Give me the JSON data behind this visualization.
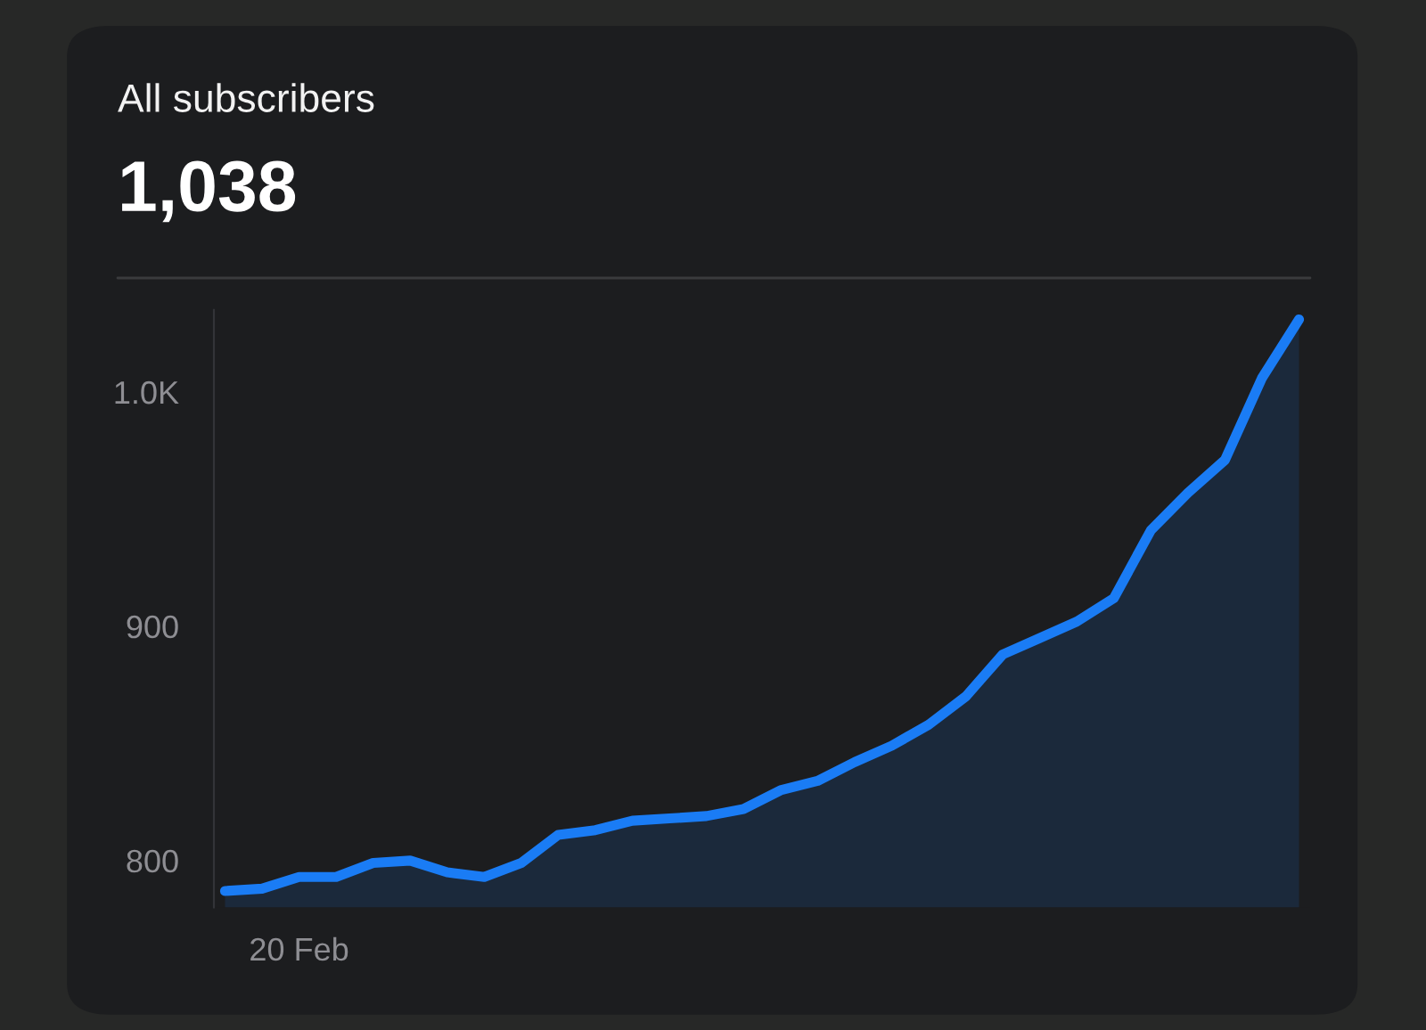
{
  "chart_data": {
    "type": "area",
    "title": "All subscribers",
    "subtitle": "1,038",
    "categories": [
      null,
      null,
      "20 Feb",
      null,
      null,
      null,
      null,
      null,
      null,
      null,
      null,
      null,
      null,
      null,
      null,
      null,
      null,
      null,
      null,
      null,
      null,
      null,
      null,
      null,
      null,
      null,
      null,
      null,
      null,
      null
    ],
    "series": [
      {
        "color": "#1a7cf5",
        "values": [
          787,
          788,
          793,
          793,
          799,
          800,
          795,
          793,
          799,
          811,
          813,
          817,
          818,
          819,
          822,
          830,
          834,
          842,
          849,
          858,
          870,
          888,
          895,
          902,
          912,
          941,
          957,
          971,
          1006,
          1031
        ]
      }
    ],
    "ylim": [
      780,
      1035
    ],
    "yticks": [
      800,
      900,
      {
        "value": 1000,
        "label": "1.0K"
      }
    ],
    "grid": false,
    "legend": false
  }
}
